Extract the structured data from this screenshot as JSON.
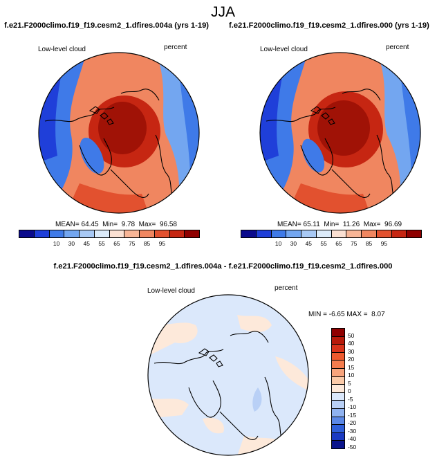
{
  "season": "JJA",
  "panels": [
    {
      "title": "f.e21.F2000climo.f19_f19.cesm2_1.dfires.004a (yrs 1-19)",
      "variable": "Low-level cloud",
      "units": "percent",
      "stats": {
        "mean_label": "MEAN=",
        "mean": "64.45",
        "min_label": "Min=",
        "min": "9.78",
        "max_label": "Max=",
        "max": "96.58"
      }
    },
    {
      "title": "f.e21.F2000climo.f19_f19.cesm2_1.dfires.000 (yrs 1-19)",
      "variable": "Low-level cloud",
      "units": "percent",
      "stats": {
        "mean_label": "MEAN=",
        "mean": "65.11",
        "min_label": "Min=",
        "min": "11.26",
        "max_label": "Max=",
        "max": "96.69"
      }
    }
  ],
  "colorbar": {
    "labels": [
      "10",
      "30",
      "45",
      "55",
      "65",
      "75",
      "85",
      "95"
    ],
    "colors": [
      "#0a0a8c",
      "#1f3fd9",
      "#3f7ae8",
      "#73a6f0",
      "#a8c9f5",
      "#dcebfa",
      "#fbe0d2",
      "#f8b596",
      "#f08660",
      "#e2512f",
      "#c62612",
      "#8f0000"
    ]
  },
  "diff": {
    "title": "f.e21.F2000climo.f19_f19.cesm2_1.dfires.004a - f.e21.F2000climo.f19_f19.cesm2_1.dfires.000",
    "variable": "Low-level cloud",
    "units": "percent",
    "minmax": {
      "min_label": "MIN =",
      "min": "-6.65",
      "max_label": "MAX =",
      "max": "8.07"
    },
    "colorbar": {
      "labels": [
        "50",
        "40",
        "30",
        "20",
        "15",
        "10",
        "5",
        "0",
        "-5",
        "-10",
        "-15",
        "-20",
        "-30",
        "-40",
        "-50"
      ],
      "colors": [
        "#8f0000",
        "#b81a0a",
        "#d9331a",
        "#ee5a2e",
        "#f47c4e",
        "#f8a47c",
        "#fbcaa8",
        "#fde9da",
        "#dbe8fb",
        "#b9d0f6",
        "#8fb2f0",
        "#5b88e6",
        "#2f5fd9",
        "#1a3ac2",
        "#0a148c"
      ]
    }
  },
  "map_colors": {
    "sea_ice_red": "#e2512f",
    "dark_red": "#b81a0a",
    "blue": "#3f7ae8",
    "light_blue": "#dbe8fb",
    "peach": "#fde9da"
  }
}
